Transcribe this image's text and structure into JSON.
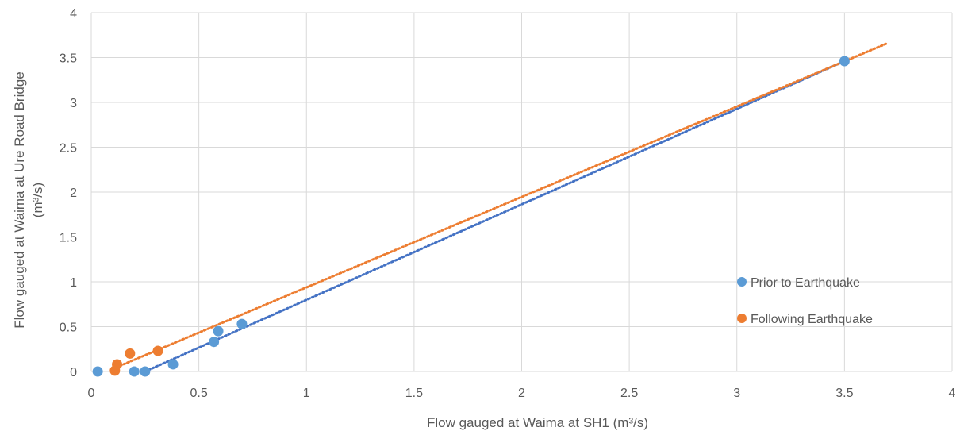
{
  "chart_data": {
    "type": "scatter",
    "title": "",
    "xlabel": "Flow gauged at Waima at SH1 (m³/s)",
    "ylabel_line1": "Flow gauged at Waima at Ure Road Bridge",
    "ylabel_line2": "(m³/s)",
    "xlim": [
      0,
      4
    ],
    "ylim": [
      0,
      4
    ],
    "x_ticks": [
      "0",
      "0.5",
      "1",
      "1.5",
      "2",
      "2.5",
      "3",
      "3.5",
      "4"
    ],
    "y_ticks": [
      "0",
      "0.5",
      "1",
      "1.5",
      "2",
      "2.5",
      "3",
      "3.5",
      "4"
    ],
    "grid": true,
    "legend_position": "right",
    "series": [
      {
        "name": "Prior to Earthquake",
        "color": "#5B9BD5",
        "trendline_color": "#4472C4",
        "points": [
          [
            0.03,
            0.0
          ],
          [
            0.2,
            0.0
          ],
          [
            0.25,
            0.0
          ],
          [
            0.38,
            0.08
          ],
          [
            0.57,
            0.33
          ],
          [
            0.59,
            0.45
          ],
          [
            0.7,
            0.53
          ],
          [
            3.5,
            3.46
          ]
        ],
        "trendline": [
          [
            0.25,
            0.0
          ],
          [
            3.5,
            3.46
          ]
        ]
      },
      {
        "name": "Following Earthquake",
        "color": "#ED7D31",
        "trendline_color": "#ED7D31",
        "points": [
          [
            0.11,
            0.01
          ],
          [
            0.12,
            0.08
          ],
          [
            0.18,
            0.2
          ],
          [
            0.31,
            0.23
          ]
        ],
        "trendline": [
          [
            0.1,
            0.03
          ],
          [
            3.7,
            3.66
          ]
        ]
      }
    ]
  }
}
